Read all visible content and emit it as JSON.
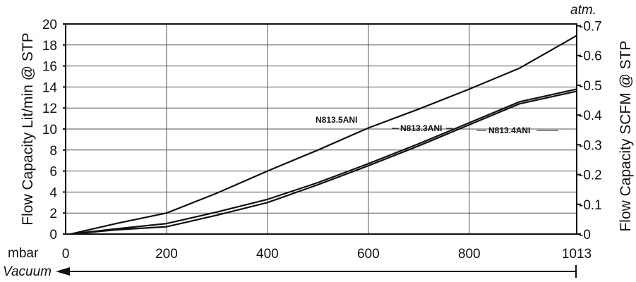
{
  "chart_data": {
    "type": "line",
    "title": "",
    "xlabel": "mbar",
    "xlim": [
      0,
      1013
    ],
    "x_ticks": [
      "0",
      "200",
      "400",
      "600",
      "800",
      "1013"
    ],
    "direction_label": "Vacuum",
    "ylabel": "Flow Capacity Lit/min @ STP",
    "ylim": [
      0,
      20
    ],
    "y_ticks": [
      "0",
      "2",
      "4",
      "6",
      "8",
      "10",
      "12",
      "14",
      "16",
      "18",
      "20"
    ],
    "y2label": "Flow Capacity SCFM @ STP",
    "y2_unit": "atm.",
    "y2lim": [
      0,
      0.706
    ],
    "y2_ticks": [
      "0",
      "0.1",
      "0.2",
      "0.3",
      "0.4",
      "0.5",
      "0.6",
      "0.7"
    ],
    "y2_tick_values": [
      0,
      0.1,
      0.2,
      0.3,
      0.4,
      0.5,
      0.6,
      0.7
    ],
    "grid": true,
    "series": [
      {
        "name": "N813.5ANI",
        "x": [
          10,
          100,
          200,
          300,
          400,
          500,
          600,
          700,
          800,
          900,
          1013
        ],
        "values": [
          0,
          1.0,
          2.0,
          3.9,
          6.0,
          8.0,
          10.1,
          11.9,
          13.8,
          15.8,
          18.9
        ]
      },
      {
        "name": "N813.3ANI",
        "x": [
          10,
          100,
          200,
          300,
          400,
          500,
          600,
          700,
          800,
          900,
          1013
        ],
        "values": [
          0,
          0.5,
          1.0,
          2.1,
          3.3,
          4.9,
          6.7,
          8.6,
          10.6,
          12.6,
          13.8
        ]
      },
      {
        "name": "N813.4ANI",
        "x": [
          10,
          100,
          200,
          300,
          400,
          500,
          600,
          700,
          800,
          900,
          1013
        ],
        "values": [
          0,
          0.4,
          0.7,
          1.8,
          3.0,
          4.7,
          6.5,
          8.4,
          10.4,
          12.4,
          13.6
        ]
      }
    ]
  }
}
